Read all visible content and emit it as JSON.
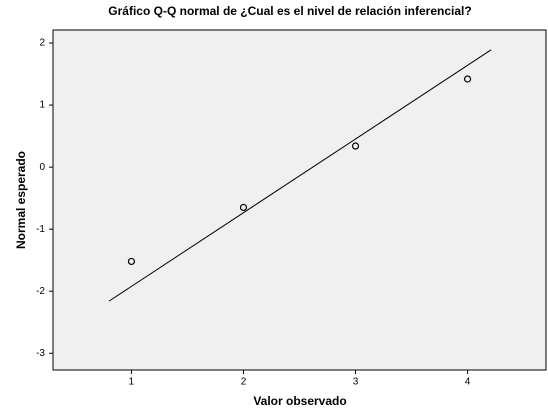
{
  "chart_data": {
    "type": "scatter",
    "title": "Gráfico Q-Q normal de ¿Cual es el nivel de relación inferencial?",
    "xlabel": "Valor observado",
    "ylabel": "Normal esperado",
    "x": [
      1,
      2,
      3,
      4
    ],
    "values": [
      -1.52,
      -0.65,
      0.34,
      1.42
    ],
    "reference_line": {
      "x": [
        0.8,
        4.21
      ],
      "values": [
        -2.16,
        1.89
      ]
    },
    "xlim": [
      0.3,
      4.7
    ],
    "ylim": [
      -3.27,
      2.21
    ],
    "xticks": [
      1,
      2,
      3,
      4
    ],
    "yticks": [
      -3,
      -2,
      -1,
      0,
      1,
      2
    ],
    "plot_background": "#f0f0f0"
  }
}
